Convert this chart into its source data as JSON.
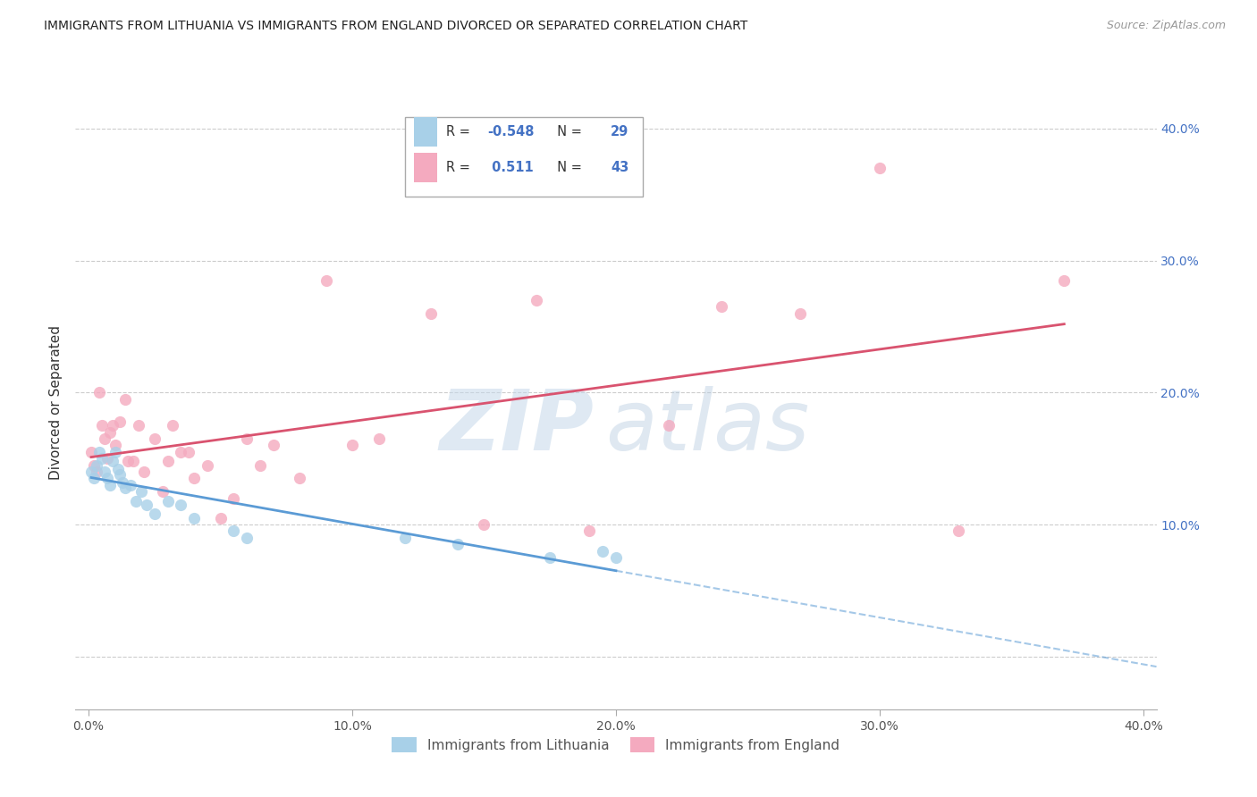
{
  "title": "IMMIGRANTS FROM LITHUANIA VS IMMIGRANTS FROM ENGLAND DIVORCED OR SEPARATED CORRELATION CHART",
  "source": "Source: ZipAtlas.com",
  "ylabel": "Divorced or Separated",
  "legend_label1": "Immigrants from Lithuania",
  "legend_label2": "Immigrants from England",
  "r1": "-0.548",
  "n1": "29",
  "r2": "0.511",
  "n2": "43",
  "color1": "#A8D0E8",
  "color2": "#F4AABF",
  "line_color1": "#5B9BD5",
  "line_color2": "#D9536F",
  "watermark_zip": "ZIP",
  "watermark_atlas": "atlas",
  "xlim": [
    -0.005,
    0.405
  ],
  "ylim": [
    -0.04,
    0.425
  ],
  "yticks": [
    0.0,
    0.1,
    0.2,
    0.3,
    0.4
  ],
  "yticklabels": [
    "",
    "10.0%",
    "20.0%",
    "30.0%",
    "40.0%"
  ],
  "xticks": [
    0.0,
    0.1,
    0.2,
    0.3,
    0.4
  ],
  "xticklabels": [
    "0.0%",
    "10.0%",
    "20.0%",
    "30.0%",
    "40.0%"
  ],
  "lithuania_x": [
    0.001,
    0.002,
    0.003,
    0.004,
    0.005,
    0.006,
    0.007,
    0.008,
    0.009,
    0.01,
    0.011,
    0.012,
    0.013,
    0.014,
    0.016,
    0.018,
    0.02,
    0.022,
    0.025,
    0.03,
    0.035,
    0.04,
    0.055,
    0.06,
    0.12,
    0.14,
    0.175,
    0.195,
    0.2
  ],
  "lithuania_y": [
    0.14,
    0.135,
    0.145,
    0.155,
    0.15,
    0.14,
    0.135,
    0.13,
    0.148,
    0.155,
    0.142,
    0.138,
    0.132,
    0.128,
    0.13,
    0.118,
    0.125,
    0.115,
    0.108,
    0.118,
    0.115,
    0.105,
    0.095,
    0.09,
    0.09,
    0.085,
    0.075,
    0.08,
    0.075
  ],
  "england_x": [
    0.001,
    0.002,
    0.003,
    0.004,
    0.005,
    0.006,
    0.007,
    0.008,
    0.009,
    0.01,
    0.012,
    0.014,
    0.015,
    0.017,
    0.019,
    0.021,
    0.025,
    0.028,
    0.03,
    0.032,
    0.035,
    0.038,
    0.04,
    0.045,
    0.05,
    0.055,
    0.06,
    0.065,
    0.07,
    0.08,
    0.09,
    0.1,
    0.11,
    0.13,
    0.15,
    0.17,
    0.19,
    0.22,
    0.24,
    0.27,
    0.3,
    0.33,
    0.37
  ],
  "england_y": [
    0.155,
    0.145,
    0.14,
    0.2,
    0.175,
    0.165,
    0.15,
    0.17,
    0.175,
    0.16,
    0.178,
    0.195,
    0.148,
    0.148,
    0.175,
    0.14,
    0.165,
    0.125,
    0.148,
    0.175,
    0.155,
    0.155,
    0.135,
    0.145,
    0.105,
    0.12,
    0.165,
    0.145,
    0.16,
    0.135,
    0.285,
    0.16,
    0.165,
    0.26,
    0.1,
    0.27,
    0.095,
    0.175,
    0.265,
    0.26,
    0.37,
    0.095,
    0.285
  ]
}
